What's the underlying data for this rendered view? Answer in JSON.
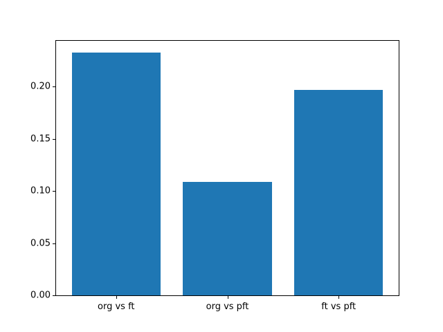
{
  "chart_data": {
    "type": "bar",
    "categories": [
      "org vs ft",
      "org vs pft",
      "ft vs pft"
    ],
    "values": [
      0.233,
      0.109,
      0.197
    ],
    "title": "",
    "xlabel": "",
    "ylabel": "",
    "ylim": [
      0,
      0.244
    ],
    "xlim": [
      -0.54,
      2.54
    ],
    "yticks": [
      0.0,
      0.05,
      0.1,
      0.15,
      0.2
    ],
    "ytick_labels": [
      "0.00",
      "0.05",
      "0.10",
      "0.15",
      "0.20"
    ],
    "bar_color": "#1f77b4",
    "bar_width_fraction": 0.8,
    "grid": false,
    "legend": null,
    "background": "#ffffff",
    "spine_color": "#000000"
  }
}
